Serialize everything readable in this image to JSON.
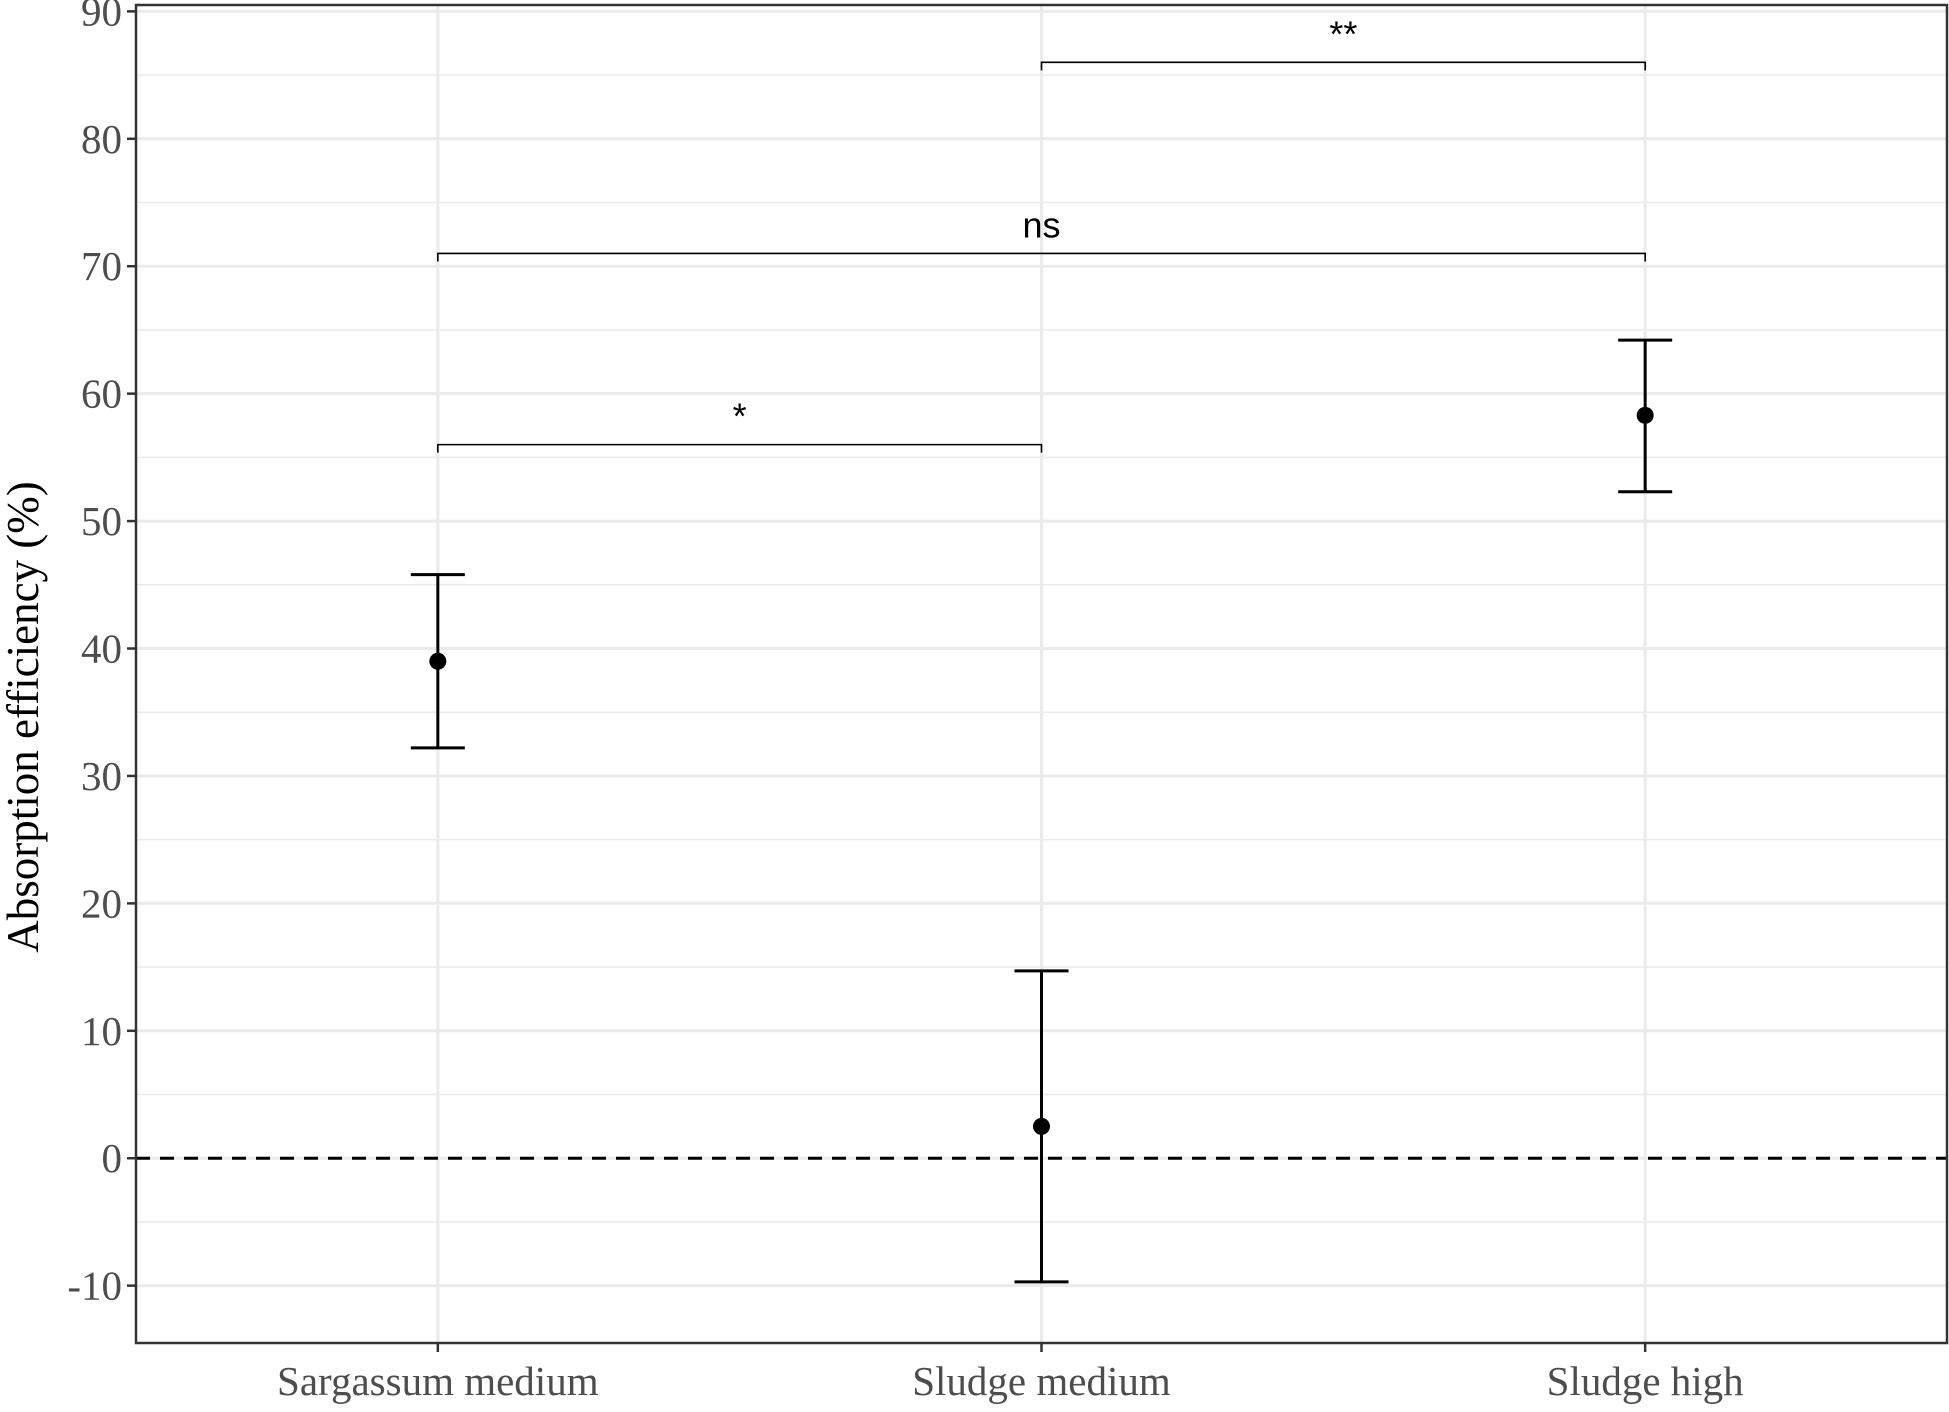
{
  "chart_data": {
    "type": "scatter",
    "categories": [
      "Sargassum medium",
      "Sludge medium",
      "Sludge high"
    ],
    "series": [
      {
        "points": [
          {
            "category": "Sargassum medium",
            "mean": 39.0,
            "lower": 32.2,
            "upper": 45.8
          },
          {
            "category": "Sludge medium",
            "mean": 2.5,
            "lower": -9.7,
            "upper": 14.7
          },
          {
            "category": "Sludge high",
            "mean": 58.3,
            "lower": 52.3,
            "upper": 64.2
          }
        ]
      }
    ],
    "title": "",
    "xlabel": "",
    "ylabel": "Absorption efficiency (%)",
    "ylim": [
      -14.5,
      90.5
    ],
    "yticks": [
      -10,
      0,
      10,
      20,
      30,
      40,
      50,
      60,
      70,
      80,
      90
    ],
    "ytick_labels": [
      "-10",
      "0",
      "10",
      "20",
      "30",
      "40",
      "50",
      "60",
      "70",
      "80",
      "90"
    ],
    "reference_line": {
      "y": 0,
      "style": "dashed"
    },
    "significance": [
      {
        "from": "Sargassum medium",
        "to": "Sludge medium",
        "y": 56,
        "label": "*"
      },
      {
        "from": "Sargassum medium",
        "to": "Sludge high",
        "y": 71,
        "label": "ns"
      },
      {
        "from": "Sludge medium",
        "to": "Sludge high",
        "y": 86,
        "label": "**"
      }
    ],
    "grid": true,
    "legend": "none",
    "colors": {
      "point": "#000000",
      "grid": "#ebebeb",
      "axis_text": "#4d4d4d"
    }
  }
}
